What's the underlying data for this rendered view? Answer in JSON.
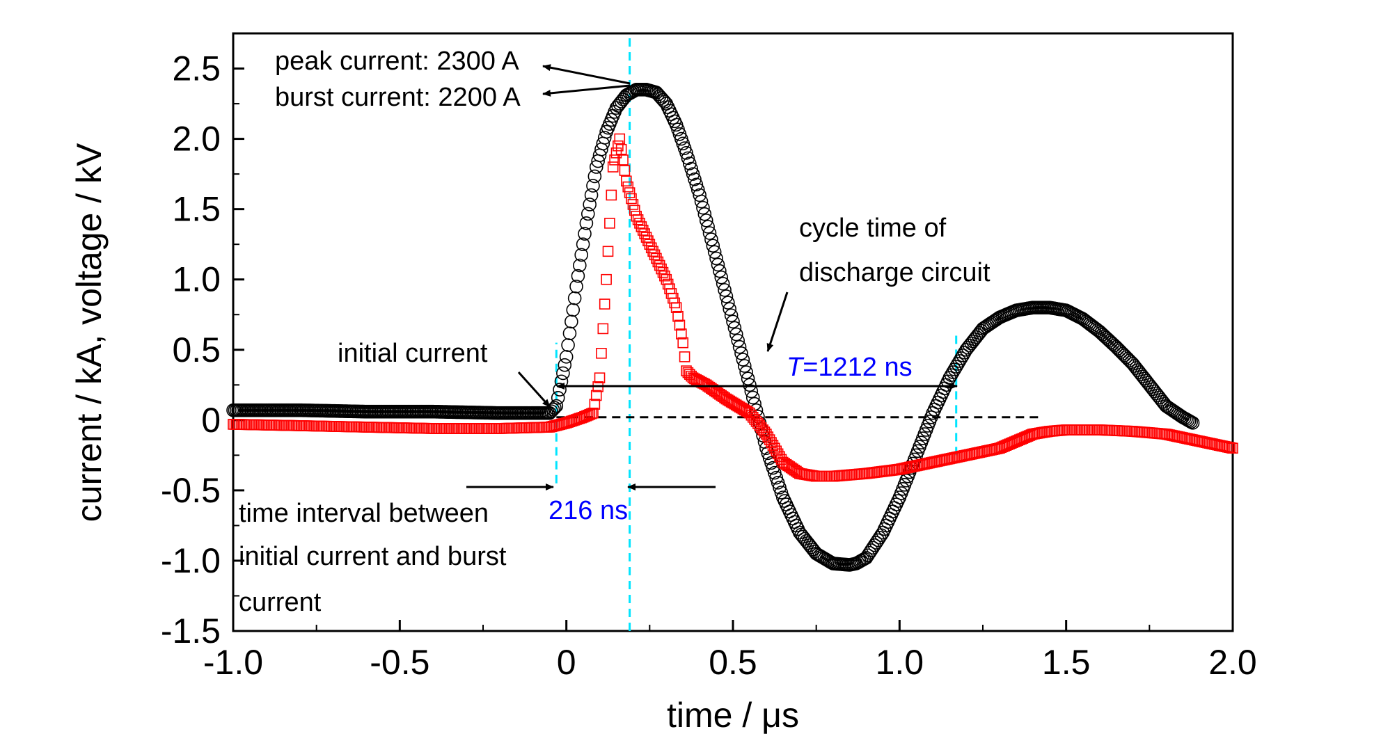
{
  "chart_data": {
    "type": "scatter",
    "xlabel": "time / μs",
    "ylabel": "current / kA, voltage / kV",
    "xlim": [
      -1.0,
      2.0
    ],
    "ylim": [
      -1.5,
      2.75
    ],
    "x_ticks": [
      {
        "value": -1.0,
        "label": "-1.0"
      },
      {
        "value": -0.5,
        "label": "-0.5"
      },
      {
        "value": 0.0,
        "label": "0"
      },
      {
        "value": 0.5,
        "label": "0.5"
      },
      {
        "value": 1.0,
        "label": "1.0"
      },
      {
        "value": 1.5,
        "label": "1.5"
      },
      {
        "value": 2.0,
        "label": "2.0"
      }
    ],
    "y_ticks": [
      {
        "value": -1.5,
        "label": "-1.5"
      },
      {
        "value": -1.0,
        "label": "-1.0"
      },
      {
        "value": -0.5,
        "label": "-0.5"
      },
      {
        "value": 0.0,
        "label": "0"
      },
      {
        "value": 0.5,
        "label": "0.5"
      },
      {
        "value": 1.0,
        "label": "1.0"
      },
      {
        "value": 1.5,
        "label": "1.5"
      },
      {
        "value": 2.0,
        "label": "2.0"
      },
      {
        "value": 2.5,
        "label": "2.5"
      }
    ],
    "grid": false,
    "colors": {
      "current": "#000000",
      "voltage": "#ff0000",
      "markers": "#00e5ff",
      "blue_text": "#0000ff",
      "baseline": "#000000"
    },
    "series": [
      {
        "marker": "circle",
        "color": "#000000",
        "x": [
          -1.0,
          -0.8,
          -0.6,
          -0.4,
          -0.2,
          -0.05,
          -0.03,
          0.0,
          0.03,
          0.06,
          0.09,
          0.12,
          0.15,
          0.18,
          0.21,
          0.24,
          0.27,
          0.3,
          0.33,
          0.36,
          0.4,
          0.45,
          0.5,
          0.55,
          0.6,
          0.65,
          0.7,
          0.75,
          0.8,
          0.85,
          0.87,
          0.9,
          0.95,
          1.0,
          1.05,
          1.1,
          1.15,
          1.2,
          1.25,
          1.3,
          1.35,
          1.4,
          1.45,
          1.5,
          1.55,
          1.6,
          1.65,
          1.7,
          1.75,
          1.8,
          1.85,
          1.88
        ],
        "y": [
          0.07,
          0.07,
          0.06,
          0.06,
          0.05,
          0.05,
          0.1,
          0.45,
          0.95,
          1.4,
          1.8,
          2.05,
          2.22,
          2.31,
          2.35,
          2.35,
          2.33,
          2.25,
          2.1,
          1.9,
          1.6,
          1.15,
          0.7,
          0.25,
          -0.2,
          -0.55,
          -0.8,
          -0.95,
          -1.02,
          -1.03,
          -1.02,
          -0.98,
          -0.8,
          -0.55,
          -0.25,
          0.05,
          0.3,
          0.5,
          0.65,
          0.73,
          0.78,
          0.8,
          0.8,
          0.78,
          0.72,
          0.63,
          0.52,
          0.4,
          0.25,
          0.1,
          0.02,
          -0.02
        ]
      },
      {
        "marker": "square",
        "color": "#ff0000",
        "x": [
          -1.0,
          -0.8,
          -0.6,
          -0.4,
          -0.2,
          -0.05,
          0.0,
          0.05,
          0.08,
          0.1,
          0.12,
          0.14,
          0.16,
          0.18,
          0.21,
          0.25,
          0.3,
          0.33,
          0.35,
          0.36,
          0.38,
          0.42,
          0.48,
          0.55,
          0.6,
          0.65,
          0.7,
          0.75,
          0.8,
          0.9,
          1.0,
          1.1,
          1.2,
          1.3,
          1.35,
          1.4,
          1.45,
          1.5,
          1.6,
          1.7,
          1.8,
          1.9,
          2.0
        ],
        "y": [
          -0.03,
          -0.04,
          -0.05,
          -0.06,
          -0.06,
          -0.05,
          -0.02,
          0.02,
          0.05,
          0.3,
          1.0,
          1.8,
          2.0,
          1.7,
          1.45,
          1.25,
          1.0,
          0.8,
          0.55,
          0.35,
          0.3,
          0.25,
          0.15,
          0.05,
          -0.1,
          -0.3,
          -0.38,
          -0.4,
          -0.4,
          -0.38,
          -0.35,
          -0.3,
          -0.25,
          -0.2,
          -0.15,
          -0.1,
          -0.08,
          -0.07,
          -0.07,
          -0.08,
          -0.1,
          -0.15,
          -0.2
        ]
      }
    ],
    "reference_lines": [
      {
        "orientation": "vertical",
        "x": -0.03,
        "y_range": [
          -0.45,
          0.55
        ],
        "color": "#00e5ff",
        "style": "dashed"
      },
      {
        "orientation": "vertical",
        "x": 0.19,
        "y_range": [
          -1.5,
          2.75
        ],
        "color": "#00e5ff",
        "style": "dashed"
      },
      {
        "orientation": "vertical",
        "x": 1.17,
        "y_range": [
          -0.25,
          0.6
        ],
        "color": "#00e5ff",
        "style": "dashed"
      },
      {
        "orientation": "horizontal",
        "y": 0.02,
        "x_range": [
          -0.03,
          1.42
        ],
        "color": "#000000",
        "style": "dashed"
      }
    ],
    "annotations": [
      {
        "text": "peak current: 2300 A"
      },
      {
        "text": "burst current: 2200 A"
      },
      {
        "text": "cycle time of"
      },
      {
        "text": "discharge circuit"
      },
      {
        "text": "initial current"
      },
      {
        "text": "216 ns"
      },
      {
        "text": "time interval between"
      },
      {
        "text": "initial current and burst"
      },
      {
        "text": "current"
      }
    ],
    "period_label": {
      "italic": "T",
      "rest": "=1212 ns"
    }
  }
}
